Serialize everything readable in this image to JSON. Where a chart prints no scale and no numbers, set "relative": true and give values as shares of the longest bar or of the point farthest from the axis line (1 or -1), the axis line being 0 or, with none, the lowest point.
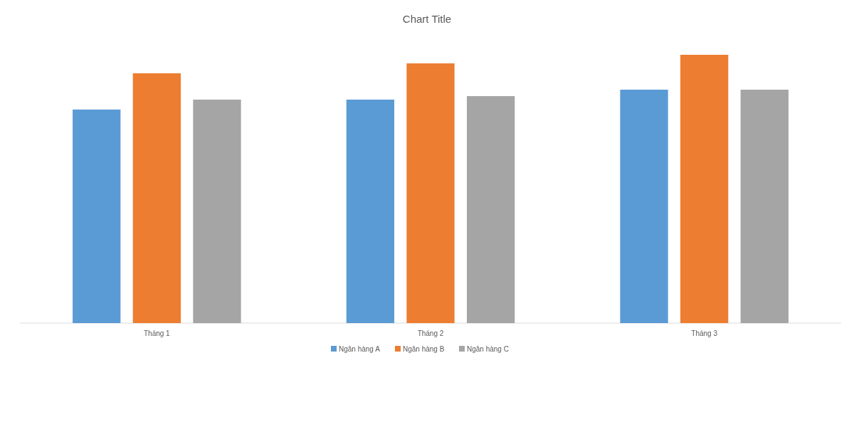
{
  "chart_data": {
    "type": "bar",
    "title": "Chart Title",
    "relative": true,
    "categories": [
      "Tháng 1",
      "Tháng 2",
      "Tháng 3"
    ],
    "legend": "bottom",
    "series": [
      {
        "name": "Ngân hàng A",
        "color": "#5b9bd5",
        "values": [
          0.796,
          0.833,
          0.87
        ]
      },
      {
        "name": "Ngân hàng B",
        "color": "#ed7d31",
        "values": [
          0.931,
          0.968,
          1
        ]
      },
      {
        "name": "Ngân hàng C",
        "color": "#a5a5a5",
        "values": [
          0.833,
          0.846,
          0.87
        ]
      }
    ]
  }
}
